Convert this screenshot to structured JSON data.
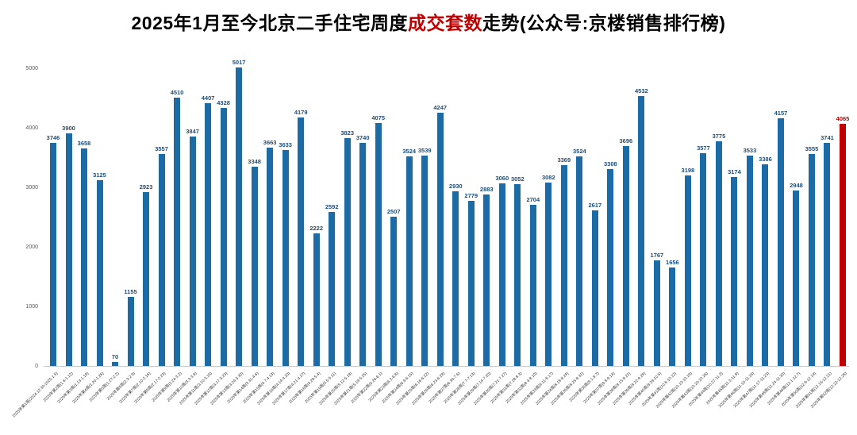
{
  "title": {
    "prefix": "2025年1月至今北京二手住宅周度",
    "highlight": "成交套数",
    "suffix": "走势(公众号:京楼销售排行榜)"
  },
  "chart_data": {
    "type": "bar",
    "title": "2025年1月至今北京二手住宅周度成交套数走势(公众号:京楼销售排行榜)",
    "xlabel": "",
    "ylabel": "",
    "ylim": [
      0,
      5000
    ],
    "yticks": [
      0,
      1000,
      2000,
      3000,
      4000,
      5000
    ],
    "grid": false,
    "legend": "none",
    "bar_color": "#1b6ca6",
    "highlight_color": "#c00000",
    "value_label_color": "#1f4e79",
    "highlight_index": 51,
    "categories": [
      "2025年第1周(2024.12.30-2025.1.5)",
      "2025年第2周(1.6-1.12)",
      "2025年第3周(1.13-1.19)",
      "2025年第4周(1.20-1.26)",
      "2025年第5周(1.27-2.2)",
      "2025年第6周(2.3-2.9)",
      "2025年第7周(2.10-2.16)",
      "2025年第8周(2.17-2.23)",
      "2025年第9周(2.24-3.2)",
      "2025年第10周(3.3-3.9)",
      "2025年第11周(3.10-3.16)",
      "2025年第12周(3.17-3.23)",
      "2025年第13周(3.24-3.30)",
      "2025年第14周(3.31-4.6)",
      "2025年第15周(4.7-4.13)",
      "2025年第16周(4.14-4.20)",
      "2025年第17周(4.21-4.27)",
      "2025年第18周(4.28-5.4)",
      "2025年第19周(5.5-5.11)",
      "2025年第20周(5.12-5.18)",
      "2025年第21周(5.19-5.25)",
      "2025年第22周(5.26-6.1)",
      "2025年第23周(6.2-6.8)",
      "2025年第24周(6.9-6.15)",
      "2025年第25周(6.16-6.22)",
      "2025年第26周(6.23-6.29)",
      "2025年第27周(6.30-7.6)",
      "2025年第28周(7.7-7.13)",
      "2025年第29周(7.14-7.20)",
      "2025年第30周(7.21-7.27)",
      "2025年第31周(7.28-8.3)",
      "2025年第32周(8.4-8.10)",
      "2025年第33周(8.11-8.17)",
      "2025年第34周(8.18-8.24)",
      "2025年第35周(8.25-8.31)",
      "2025年第36周(9.1-9.7)",
      "2025年第37周(9.8-9.14)",
      "2025年第38周(9.15-9.21)",
      "2025年第39周(9.22-9.28)",
      "2025年第40周(9.29-10.5)",
      "2025年第41周(10.6-10.12)",
      "2025年第42周(10.13-10.19)",
      "2025年第43周(10.20-10.26)",
      "2025年第44周(10.27-11.2)",
      "2025年第45周(11.3-11.9)",
      "2025年第46周(11.10-11.16)",
      "2025年第47周(11.17-11.23)",
      "2025年第48周(11.24-11.30)",
      "2025年第49周(12.1-12.7)",
      "2025年第50周(12.8-12.14)",
      "2025年第51周(12.15-12.21)",
      "2025年第52周(12.22-12.28)"
    ],
    "values": [
      3746,
      3900,
      3658,
      3125,
      70,
      1155,
      2923,
      3557,
      4510,
      3847,
      4407,
      4328,
      5017,
      3348,
      3663,
      3633,
      4179,
      2222,
      2592,
      3823,
      3740,
      4075,
      2507,
      3524,
      3539,
      4247,
      2930,
      2779,
      2883,
      3060,
      3052,
      2704,
      3082,
      3369,
      3524,
      2617,
      3308,
      3696,
      4532,
      1767,
      1656,
      3198,
      3577,
      3775,
      3174,
      3533,
      3386,
      4157,
      2948,
      3555,
      3741,
      4065
    ]
  }
}
